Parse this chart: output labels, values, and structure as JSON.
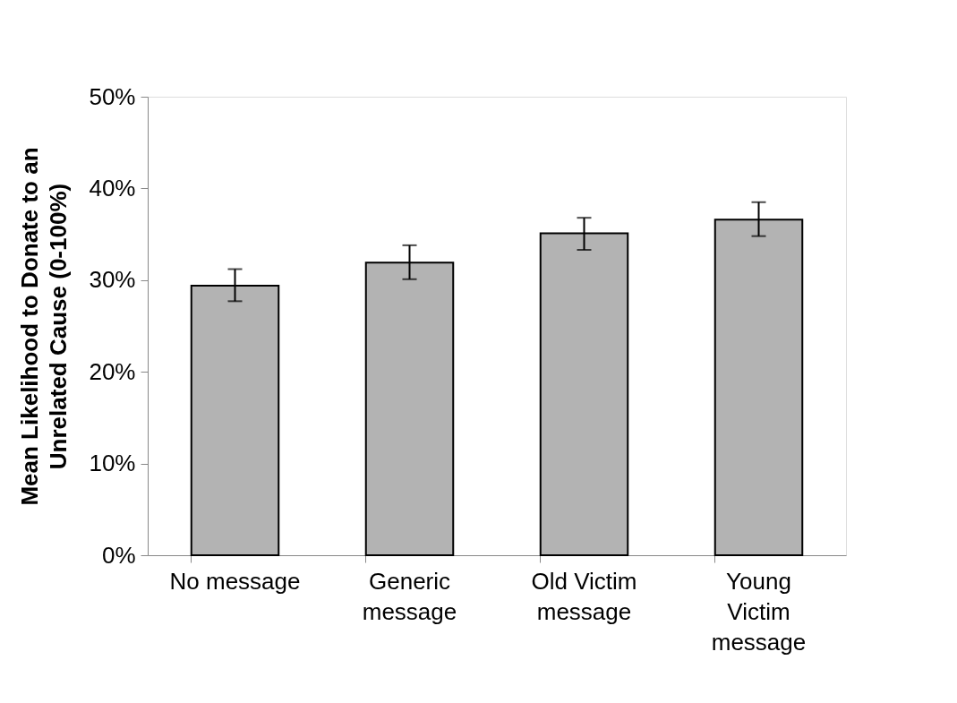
{
  "chart_data": {
    "type": "bar",
    "ylabel": "Mean Likelihood to Donate to an\nUnrelated Cause (0-100%)",
    "categories": [
      "No message",
      "Generic\nmessage",
      "Old Victim\nmessage",
      "Young\nVictim\nmessage"
    ],
    "values": [
      29.4,
      31.9,
      35.1,
      36.6
    ],
    "errors": [
      [
        27.7,
        31.2
      ],
      [
        30.1,
        33.8
      ],
      [
        33.3,
        36.8
      ],
      [
        34.8,
        38.5
      ]
    ],
    "color": "#b3b3b3",
    "ylim": [
      0,
      50
    ],
    "yticks": [
      {
        "value": 0,
        "label": "0%"
      },
      {
        "value": 10,
        "label": "10%"
      },
      {
        "value": 20,
        "label": "20%"
      },
      {
        "value": 30,
        "label": "30%"
      },
      {
        "value": 40,
        "label": "40%"
      },
      {
        "value": 50,
        "label": "50%"
      }
    ],
    "grid": false
  }
}
